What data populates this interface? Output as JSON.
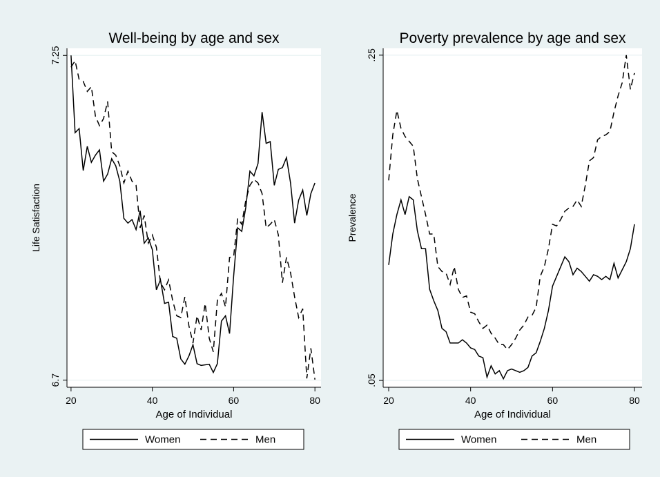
{
  "chart_data": [
    {
      "type": "line",
      "title": "Well-being by age and sex",
      "x_label": "Age of Individual",
      "y_label": "Life Satisfaction",
      "x": [
        20,
        21,
        22,
        23,
        24,
        25,
        26,
        27,
        28,
        29,
        30,
        31,
        32,
        33,
        34,
        35,
        36,
        37,
        38,
        39,
        40,
        41,
        42,
        43,
        44,
        45,
        46,
        47,
        48,
        49,
        50,
        51,
        52,
        53,
        54,
        55,
        56,
        57,
        58,
        59,
        60,
        61,
        62,
        63,
        64,
        65,
        66,
        67,
        68,
        69,
        70,
        71,
        72,
        73,
        74,
        75,
        76,
        77,
        78,
        79,
        80
      ],
      "series": [
        {
          "name": "Women",
          "color": "#000000",
          "style": "solid",
          "values": [
            7.25,
            7.119,
            7.126,
            7.055,
            7.096,
            7.069,
            7.081,
            7.09,
            7.037,
            7.049,
            7.075,
            7.063,
            7.037,
            6.974,
            6.966,
            6.972,
            6.955,
            6.987,
            6.932,
            6.941,
            6.921,
            6.853,
            6.87,
            6.83,
            6.832,
            6.774,
            6.771,
            6.736,
            6.727,
            6.741,
            6.76,
            6.728,
            6.725,
            6.726,
            6.727,
            6.713,
            6.728,
            6.8,
            6.809,
            6.779,
            6.876,
            6.958,
            6.952,
            6.993,
            7.054,
            7.046,
            7.067,
            7.154,
            7.101,
            7.104,
            7.03,
            7.057,
            7.06,
            7.077,
            7.034,
            6.966,
            7.005,
            7.022,
            6.979,
            7.016,
            7.034
          ]
        },
        {
          "name": "Men",
          "color": "#000000",
          "style": "dash",
          "values": [
            7.23,
            7.241,
            7.209,
            7.206,
            7.189,
            7.197,
            7.147,
            7.131,
            7.143,
            7.172,
            7.087,
            7.081,
            7.063,
            7.034,
            7.054,
            7.037,
            7.03,
            6.958,
            6.979,
            6.932,
            6.946,
            6.925,
            6.865,
            6.853,
            6.87,
            6.835,
            6.809,
            6.806,
            6.841,
            6.792,
            6.763,
            6.809,
            6.785,
            6.83,
            6.771,
            6.748,
            6.835,
            6.847,
            6.824,
            6.908,
            6.909,
            6.974,
            6.964,
            7.005,
            7.03,
            7.04,
            7.034,
            7.016,
            6.958,
            6.964,
            6.972,
            6.946,
            6.865,
            6.908,
            6.882,
            6.841,
            6.806,
            6.821,
            6.703,
            6.754,
            6.701
          ]
        }
      ],
      "xlim": [
        19,
        81.5
      ],
      "xticks": [
        20,
        40,
        60,
        80
      ],
      "ylim": [
        6.688,
        7.262
      ],
      "yticks": [
        6.7,
        7.25
      ],
      "grid": true
    },
    {
      "type": "line",
      "title": "Poverty prevalence by age and sex",
      "x_label": "Age of Individual",
      "y_label": "Prevalence",
      "x": [
        20,
        21,
        22,
        23,
        24,
        25,
        26,
        27,
        28,
        29,
        30,
        31,
        32,
        33,
        34,
        35,
        36,
        37,
        38,
        39,
        40,
        41,
        42,
        43,
        44,
        45,
        46,
        47,
        48,
        49,
        50,
        51,
        52,
        53,
        54,
        55,
        56,
        57,
        58,
        59,
        60,
        61,
        62,
        63,
        64,
        65,
        66,
        67,
        68,
        69,
        70,
        71,
        72,
        73,
        74,
        75,
        76,
        77,
        78,
        79,
        80
      ],
      "series": [
        {
          "name": "Women",
          "color": "#000000",
          "style": "solid",
          "values": [
            0.121,
            0.14,
            0.152,
            0.161,
            0.152,
            0.163,
            0.161,
            0.142,
            0.131,
            0.131,
            0.106,
            0.099,
            0.093,
            0.082,
            0.08,
            0.073,
            0.073,
            0.073,
            0.075,
            0.073,
            0.07,
            0.069,
            0.065,
            0.064,
            0.052,
            0.059,
            0.054,
            0.056,
            0.051,
            0.056,
            0.057,
            0.056,
            0.055,
            0.056,
            0.058,
            0.065,
            0.067,
            0.074,
            0.082,
            0.093,
            0.108,
            0.114,
            0.12,
            0.126,
            0.123,
            0.115,
            0.119,
            0.117,
            0.114,
            0.111,
            0.115,
            0.114,
            0.112,
            0.114,
            0.112,
            0.122,
            0.113,
            0.118,
            0.123,
            0.131,
            0.146
          ]
        },
        {
          "name": "Men",
          "color": "#000000",
          "style": "dash",
          "values": [
            0.173,
            0.201,
            0.216,
            0.205,
            0.2,
            0.197,
            0.194,
            0.174,
            0.163,
            0.152,
            0.14,
            0.14,
            0.12,
            0.117,
            0.116,
            0.109,
            0.12,
            0.106,
            0.101,
            0.102,
            0.092,
            0.091,
            0.086,
            0.082,
            0.084,
            0.079,
            0.076,
            0.072,
            0.072,
            0.069,
            0.072,
            0.076,
            0.081,
            0.084,
            0.089,
            0.09,
            0.095,
            0.114,
            0.12,
            0.131,
            0.146,
            0.145,
            0.149,
            0.154,
            0.156,
            0.157,
            0.161,
            0.157,
            0.17,
            0.185,
            0.187,
            0.198,
            0.2,
            0.201,
            0.203,
            0.215,
            0.225,
            0.233,
            0.25,
            0.229,
            0.239
          ]
        }
      ],
      "xlim": [
        18.65,
        81.85
      ],
      "xticks": [
        20,
        40,
        60,
        80
      ],
      "ylim": [
        0.0458,
        0.2542
      ],
      "yticks": [
        {
          "value": 0.05,
          "label": ".05"
        },
        {
          "value": 0.25,
          "label": ".25"
        }
      ],
      "grid": true
    }
  ]
}
